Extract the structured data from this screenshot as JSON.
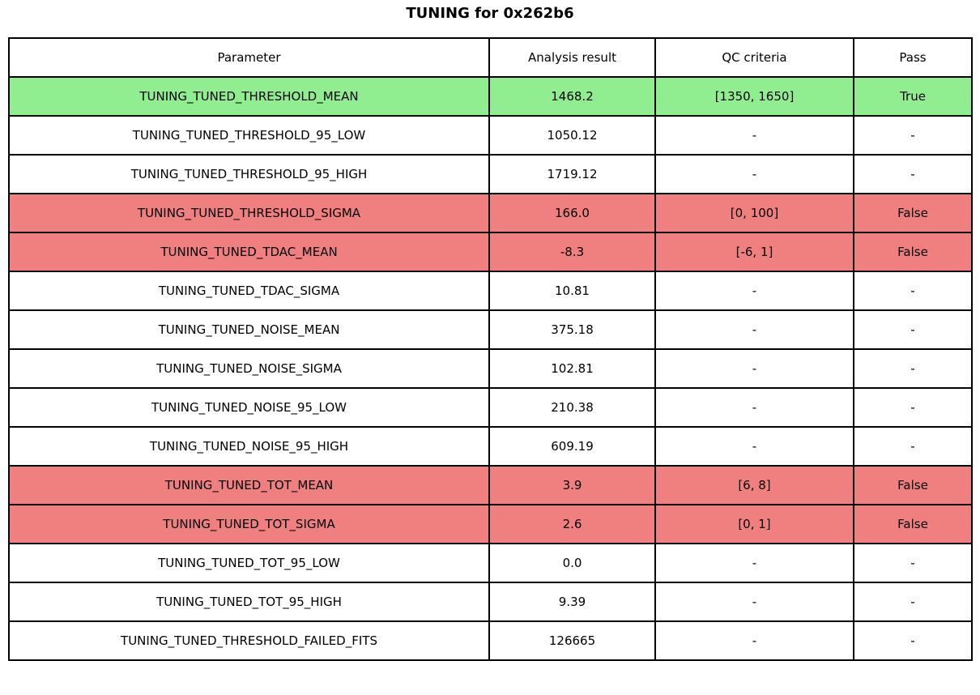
{
  "title": "TUNING for 0x262b6",
  "colors": {
    "pass": "#90EE90",
    "fail": "#F08080",
    "none": "#FFFFFF",
    "border": "#000000",
    "text": "#000000"
  },
  "chart_data": {
    "type": "table",
    "title": "TUNING for 0x262b6",
    "columns": [
      "Parameter",
      "Analysis result",
      "QC criteria",
      "Pass"
    ],
    "rows": [
      {
        "cells": [
          "TUNING_TUNED_THRESHOLD_MEAN",
          "1468.2",
          "[1350, 1650]",
          "True"
        ],
        "status": "pass"
      },
      {
        "cells": [
          "TUNING_TUNED_THRESHOLD_95_LOW",
          "1050.12",
          "-",
          "-"
        ],
        "status": "none"
      },
      {
        "cells": [
          "TUNING_TUNED_THRESHOLD_95_HIGH",
          "1719.12",
          "-",
          "-"
        ],
        "status": "none"
      },
      {
        "cells": [
          "TUNING_TUNED_THRESHOLD_SIGMA",
          "166.0",
          "[0, 100]",
          "False"
        ],
        "status": "fail"
      },
      {
        "cells": [
          "TUNING_TUNED_TDAC_MEAN",
          "-8.3",
          "[-6, 1]",
          "False"
        ],
        "status": "fail"
      },
      {
        "cells": [
          "TUNING_TUNED_TDAC_SIGMA",
          "10.81",
          "-",
          "-"
        ],
        "status": "none"
      },
      {
        "cells": [
          "TUNING_TUNED_NOISE_MEAN",
          "375.18",
          "-",
          "-"
        ],
        "status": "none"
      },
      {
        "cells": [
          "TUNING_TUNED_NOISE_SIGMA",
          "102.81",
          "-",
          "-"
        ],
        "status": "none"
      },
      {
        "cells": [
          "TUNING_TUNED_NOISE_95_LOW",
          "210.38",
          "-",
          "-"
        ],
        "status": "none"
      },
      {
        "cells": [
          "TUNING_TUNED_NOISE_95_HIGH",
          "609.19",
          "-",
          "-"
        ],
        "status": "none"
      },
      {
        "cells": [
          "TUNING_TUNED_TOT_MEAN",
          "3.9",
          "[6, 8]",
          "False"
        ],
        "status": "fail"
      },
      {
        "cells": [
          "TUNING_TUNED_TOT_SIGMA",
          "2.6",
          "[0, 1]",
          "False"
        ],
        "status": "fail"
      },
      {
        "cells": [
          "TUNING_TUNED_TOT_95_LOW",
          "0.0",
          "-",
          "-"
        ],
        "status": "none"
      },
      {
        "cells": [
          "TUNING_TUNED_TOT_95_HIGH",
          "9.39",
          "-",
          "-"
        ],
        "status": "none"
      },
      {
        "cells": [
          "TUNING_TUNED_THRESHOLD_FAILED_FITS",
          "126665",
          "-",
          "-"
        ],
        "status": "none"
      }
    ]
  }
}
